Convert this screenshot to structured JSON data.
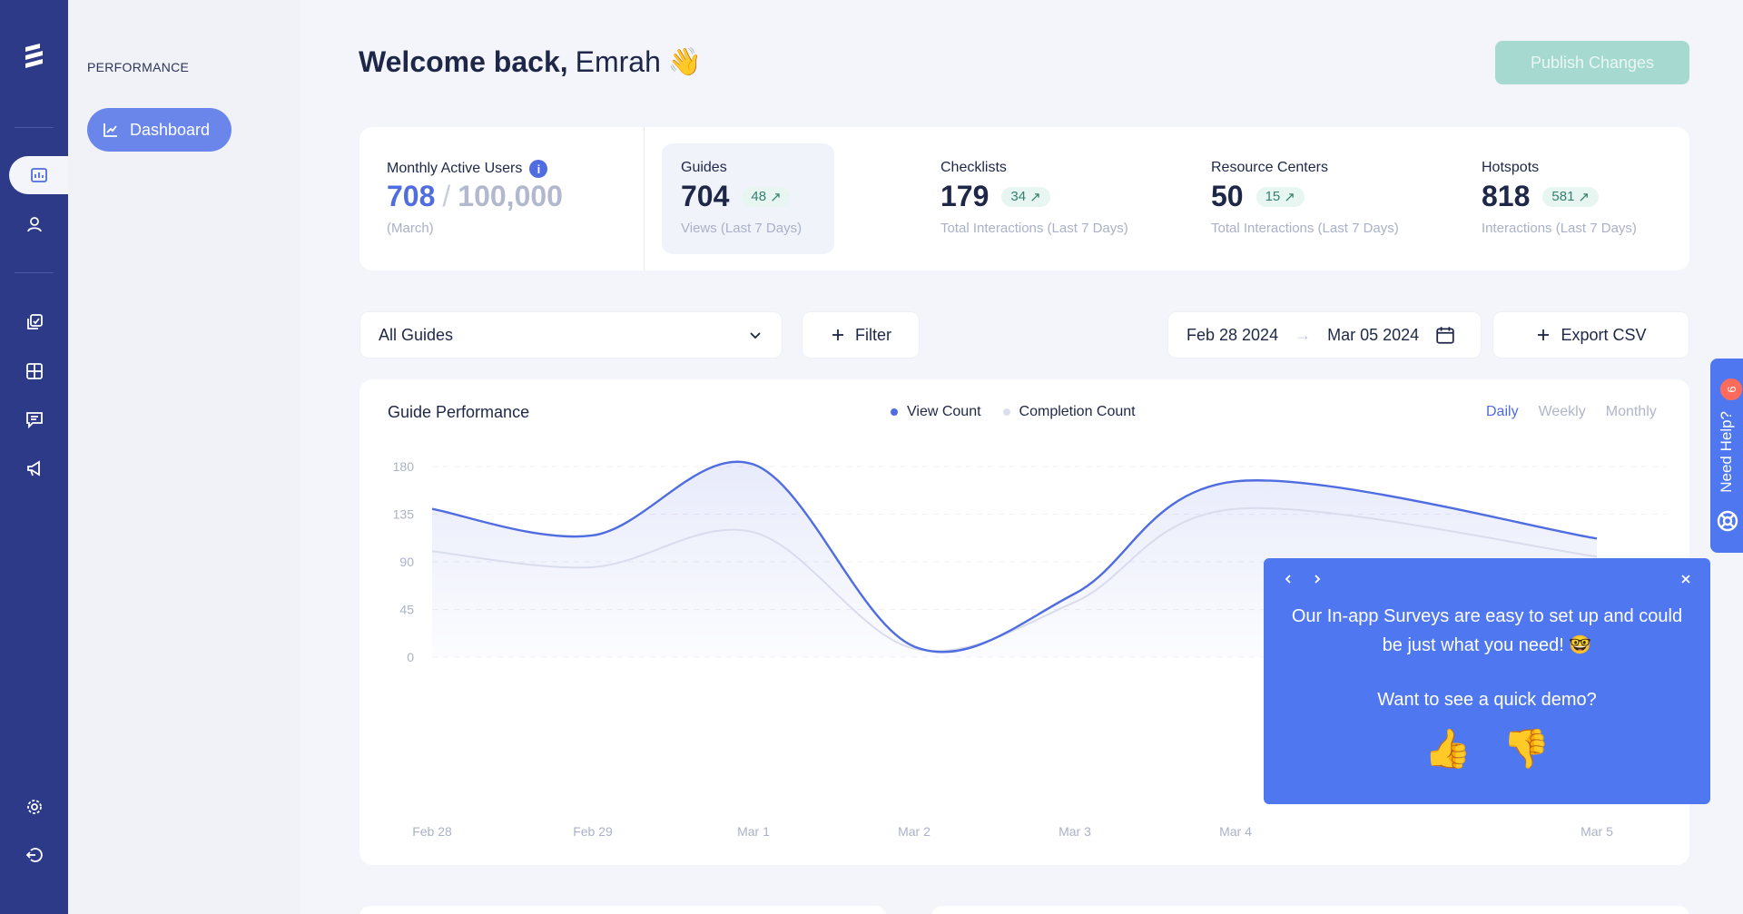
{
  "sidebar": {
    "section_title": "PERFORMANCE",
    "dashboard_label": "Dashboard"
  },
  "header": {
    "welcome_bold": "Welcome back,",
    "user_name": "Emrah",
    "wave_emoji": "👋",
    "publish_label": "Publish Changes"
  },
  "stats": {
    "mau": {
      "label": "Monthly Active Users",
      "info": "i",
      "value": "708",
      "limit": "100,000",
      "sub": "(March)"
    },
    "guides": {
      "label": "Guides",
      "value": "704",
      "delta": "48",
      "sub": "Views (Last 7 Days)"
    },
    "checklists": {
      "label": "Checklists",
      "value": "179",
      "delta": "34",
      "sub": "Total Interactions (Last 7 Days)"
    },
    "resource_centers": {
      "label": "Resource Centers",
      "value": "50",
      "delta": "15",
      "sub": "Total Interactions (Last 7 Days)"
    },
    "hotspots": {
      "label": "Hotspots",
      "value": "818",
      "delta": "581",
      "sub": "Interactions (Last 7 Days)"
    }
  },
  "controls": {
    "guide_select": "All Guides",
    "filter_label": "Filter",
    "date_from": "Feb 28 2024",
    "date_to": "Mar 05 2024",
    "export_label": "Export CSV"
  },
  "chart": {
    "title": "Guide Performance",
    "legend_view": "View Count",
    "legend_completion": "Completion Count",
    "period_daily": "Daily",
    "period_weekly": "Weekly",
    "period_monthly": "Monthly",
    "selected_period": "Daily",
    "colors": {
      "view": "#4f6ce0",
      "completion": "#dcdfee"
    }
  },
  "chart_data": {
    "type": "area",
    "title": "Guide Performance",
    "categories": [
      "Feb 28",
      "Feb 29",
      "Mar 1",
      "Mar 2",
      "Mar 3",
      "Mar 4",
      "Mar 5"
    ],
    "series": [
      {
        "name": "View Count",
        "values": [
          140,
          115,
          182,
          10,
          60,
          166,
          112
        ]
      },
      {
        "name": "Completion Count",
        "values": [
          100,
          85,
          118,
          8,
          52,
          140,
          95
        ]
      }
    ],
    "yticks": [
      0,
      45,
      90,
      135,
      180
    ],
    "ylim": [
      0,
      180
    ],
    "grid": true,
    "legend": "top-center"
  },
  "survey": {
    "message": "Our In-app Surveys are easy to set up and could be just what you need! 🤓",
    "question": "Want to see a quick demo?",
    "thumbs_up": "👍",
    "thumbs_down": "👎"
  },
  "help": {
    "label": "Need Help?",
    "badge": "6"
  }
}
